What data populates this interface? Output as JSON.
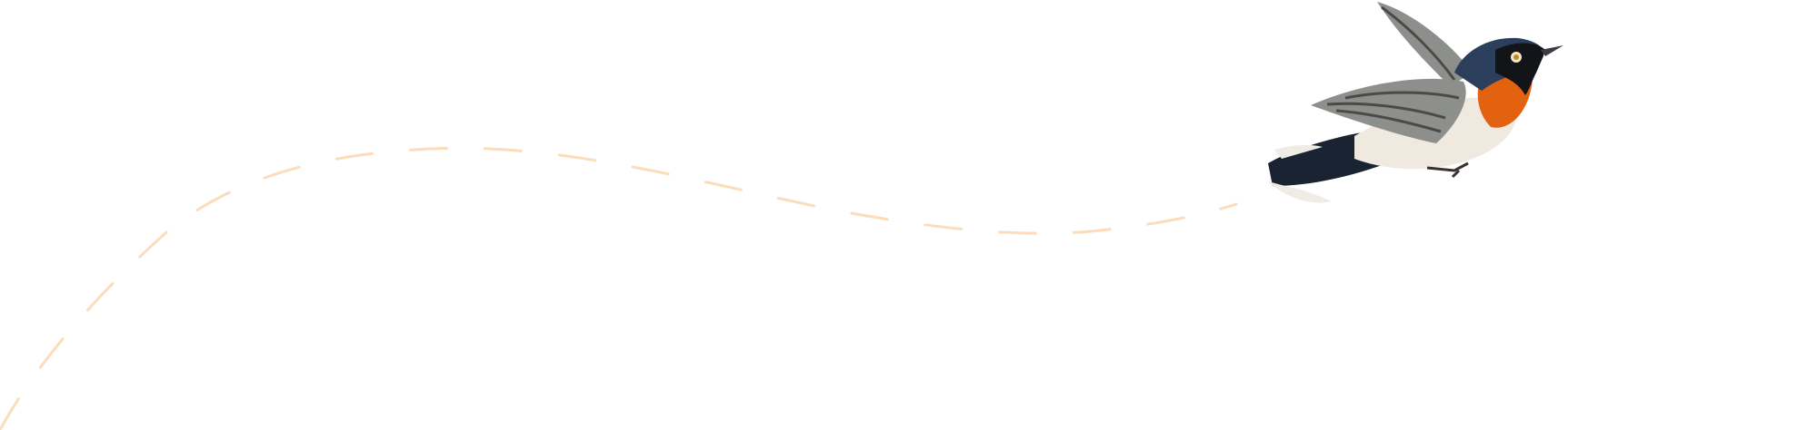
{
  "decoration": {
    "path_color": "#fddcbc",
    "bird_colors": {
      "head": "#2b3f5c",
      "mask": "#121418",
      "throat": "#e2620f",
      "belly": "#efe9df",
      "wing": "#8d8f8c",
      "wing_dark": "#4b4a46",
      "tail": "#1a2332",
      "tail_tip": "#efece6"
    },
    "icon": "flying-bird-illustration"
  }
}
